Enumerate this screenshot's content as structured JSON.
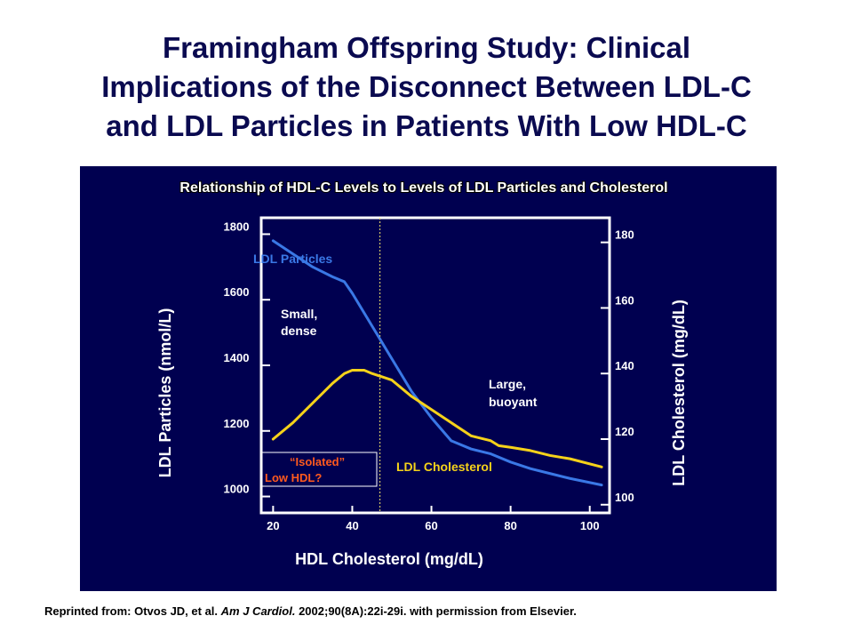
{
  "slide": {
    "title_line1": "Framingham Offspring Study: Clinical",
    "title_line2": "Implications of the Disconnect Between LDL-C",
    "title_line3": "and LDL Particles in Patients With Low HDL-C"
  },
  "footer": {
    "prefix": "Reprinted from: Otvos JD, et al. ",
    "journal": "Am J Cardiol.",
    "suffix": " 2002;90(8A):22i-29i. with permission from Elsevier."
  },
  "colors": {
    "panel_bg": "#000050",
    "ldl_particles": "#3a78e6",
    "ldl_cholesterol": "#f5d21a",
    "isolated_text": "#ff5a1e",
    "label_text": "#ffffff"
  },
  "chart_data": {
    "type": "line",
    "title": "Relationship of HDL-C Levels to Levels of LDL Particles and Cholesterol",
    "xlabel": "HDL Cholesterol (mg/dL)",
    "ylabel_left": "LDL Particles (nmol/L)",
    "ylabel_right": "LDL Cholesterol (mg/dL)",
    "xlim": [
      17,
      105
    ],
    "xticks": [
      "20",
      "40",
      "60",
      "80",
      "100"
    ],
    "ylim_left": [
      950,
      1850
    ],
    "yticks_left": [
      "1800",
      "1600",
      "1400",
      "1200",
      "1000"
    ],
    "ylim_right": [
      97.5,
      187.5
    ],
    "yticks_right": [
      "180",
      "160",
      "140",
      "120",
      "100"
    ],
    "isolated_low_hdl_threshold": 47,
    "series": [
      {
        "name": "LDL Particles",
        "axis": "left",
        "x": [
          20,
          25,
          30,
          35,
          38,
          40,
          45,
          50,
          55,
          60,
          65,
          70,
          75,
          80,
          85,
          90,
          95,
          103
        ],
        "y": [
          1780,
          1740,
          1700,
          1670,
          1655,
          1620,
          1520,
          1420,
          1320,
          1240,
          1170,
          1145,
          1130,
          1105,
          1085,
          1070,
          1055,
          1035
        ]
      },
      {
        "name": "LDL Cholesterol",
        "axis": "right",
        "x": [
          20,
          25,
          30,
          35,
          38,
          40,
          43,
          45,
          50,
          55,
          60,
          65,
          70,
          75,
          77,
          80,
          85,
          90,
          95,
          103
        ],
        "y": [
          120,
          125,
          131,
          137,
          140,
          141,
          141,
          140,
          138,
          133,
          129,
          125,
          121,
          119.5,
          118,
          117.5,
          116.5,
          115,
          114,
          111.5
        ]
      }
    ],
    "annotations": {
      "small_dense": [
        "Small,",
        "dense"
      ],
      "large_buoyant": [
        "Large,",
        "buoyant"
      ],
      "isolated": [
        "“Isolated”",
        "Low HDL?"
      ]
    }
  }
}
